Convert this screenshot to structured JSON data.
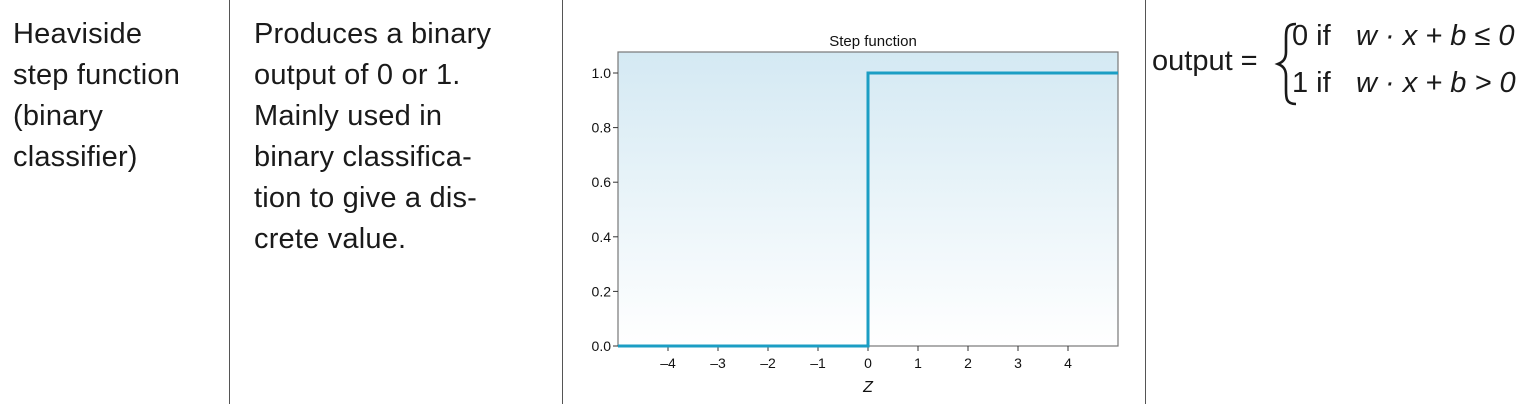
{
  "row": {
    "name": "Heaviside\nstep function\n(binary\nclassifier)",
    "description": "Produces a binary\noutput of 0 or 1.\nMainly used in\nbinary classifica-\ntion to give a dis-\ncrete value.",
    "formula": {
      "lhs": "output =",
      "case0_value": "0 if",
      "case0_condition": "w · x + b ≤ 0",
      "case1_value": "1 if",
      "case1_condition": "w · x + b > 0"
    }
  },
  "chart_data": {
    "type": "line",
    "title": "Step function",
    "xlabel": "Z",
    "ylabel": "",
    "xlim": [
      -5,
      5
    ],
    "ylim": [
      0,
      1.05
    ],
    "x_ticks": [
      "–4",
      "–3",
      "–2",
      "–1",
      "0",
      "1",
      "2",
      "3",
      "4"
    ],
    "x_tick_values": [
      -4,
      -3,
      -2,
      -1,
      0,
      1,
      2,
      3,
      4
    ],
    "y_ticks": [
      "0.0",
      "0.2",
      "0.4",
      "0.6",
      "0.8",
      "1.0"
    ],
    "y_tick_values": [
      0,
      0.2,
      0.4,
      0.6,
      0.8,
      1.0
    ],
    "series": [
      {
        "x": [
          -5,
          0,
          0,
          5
        ],
        "y": [
          0,
          0,
          1,
          1
        ]
      }
    ],
    "colors": {
      "line": "#1b9ec4",
      "background_top": "#d4e9f3",
      "background_bottom": "#ffffff"
    },
    "grid": false
  }
}
